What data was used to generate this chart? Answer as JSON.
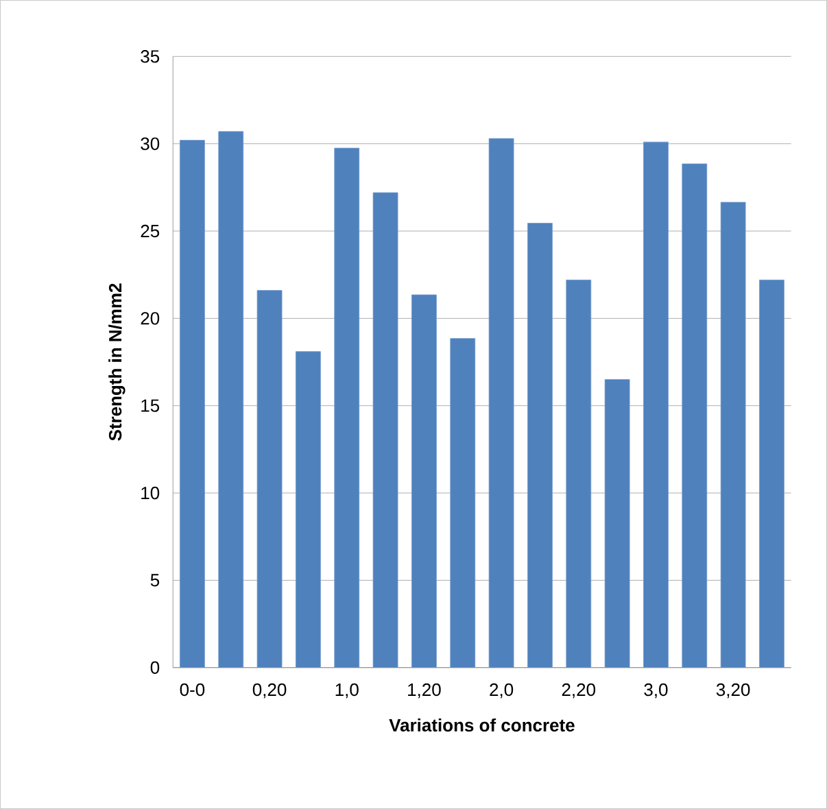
{
  "chart_data": {
    "type": "bar",
    "xlabel": "Variations of concrete",
    "ylabel": "Strength in N/mm2",
    "categories": [
      "0-0",
      null,
      "0,20",
      null,
      "1,0",
      null,
      "1,20",
      null,
      "2,0",
      null,
      "2,20",
      null,
      "3,0",
      null,
      "3,20",
      null
    ],
    "values": [
      30.2,
      30.7,
      21.6,
      18.1,
      29.75,
      27.2,
      21.35,
      18.85,
      30.3,
      25.45,
      22.2,
      16.5,
      30.1,
      28.85,
      26.65,
      22.2
    ],
    "color": "#4f81bd",
    "ylim": [
      0,
      35
    ],
    "yticks": [
      0,
      5,
      10,
      15,
      20,
      25,
      30,
      35
    ],
    "grid": "y"
  }
}
